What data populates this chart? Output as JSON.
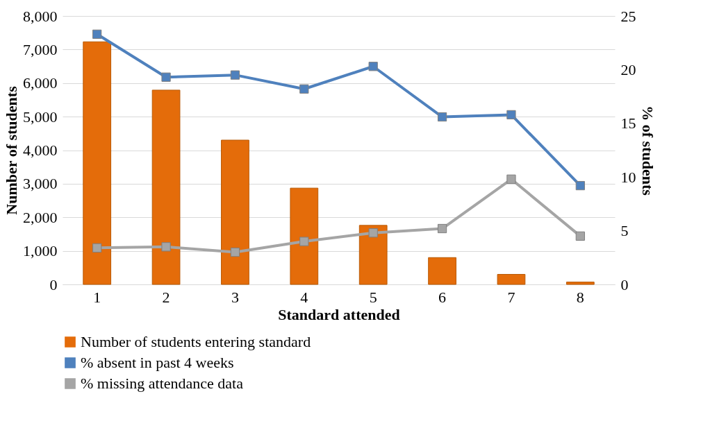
{
  "chart_data": {
    "type": "bar",
    "xlabel": "Standard attended",
    "ylabel": "Number of students",
    "y2label": "% of students",
    "categories": [
      "1",
      "2",
      "3",
      "4",
      "5",
      "6",
      "7",
      "8"
    ],
    "series": [
      {
        "name": "Number of students entering standard",
        "color": "#e46c0a",
        "values": [
          7230,
          5790,
          4300,
          2870,
          1760,
          800,
          300,
          70
        ]
      },
      {
        "name": "% absent in past 4 weeks",
        "type": "line",
        "axis": "y2",
        "color": "#4f81bd",
        "values": [
          23.3,
          19.3,
          19.5,
          18.2,
          20.3,
          15.6,
          15.8,
          9.2
        ]
      },
      {
        "name": "% missing attendance data",
        "type": "line",
        "axis": "y2",
        "color": "#a5a5a5",
        "values": [
          3.4,
          3.5,
          3.0,
          4.0,
          4.8,
          5.2,
          9.8,
          4.5
        ]
      }
    ],
    "ylim": [
      0,
      8000
    ],
    "yticks": [
      {
        "value": 0,
        "label": "0"
      },
      {
        "value": 1000,
        "label": "1,000"
      },
      {
        "value": 2000,
        "label": "2,000"
      },
      {
        "value": 3000,
        "label": "3,000"
      },
      {
        "value": 4000,
        "label": "4,000"
      },
      {
        "value": 5000,
        "label": "5,000"
      },
      {
        "value": 6000,
        "label": "6,000"
      },
      {
        "value": 7000,
        "label": "7,000"
      },
      {
        "value": 8000,
        "label": "8,000"
      }
    ],
    "y2lim": [
      0,
      25
    ],
    "y2ticks": [
      0,
      5,
      10,
      15,
      20,
      25
    ],
    "grid": "y",
    "legend": "bottom",
    "marker": "square",
    "line_style": "solid"
  }
}
